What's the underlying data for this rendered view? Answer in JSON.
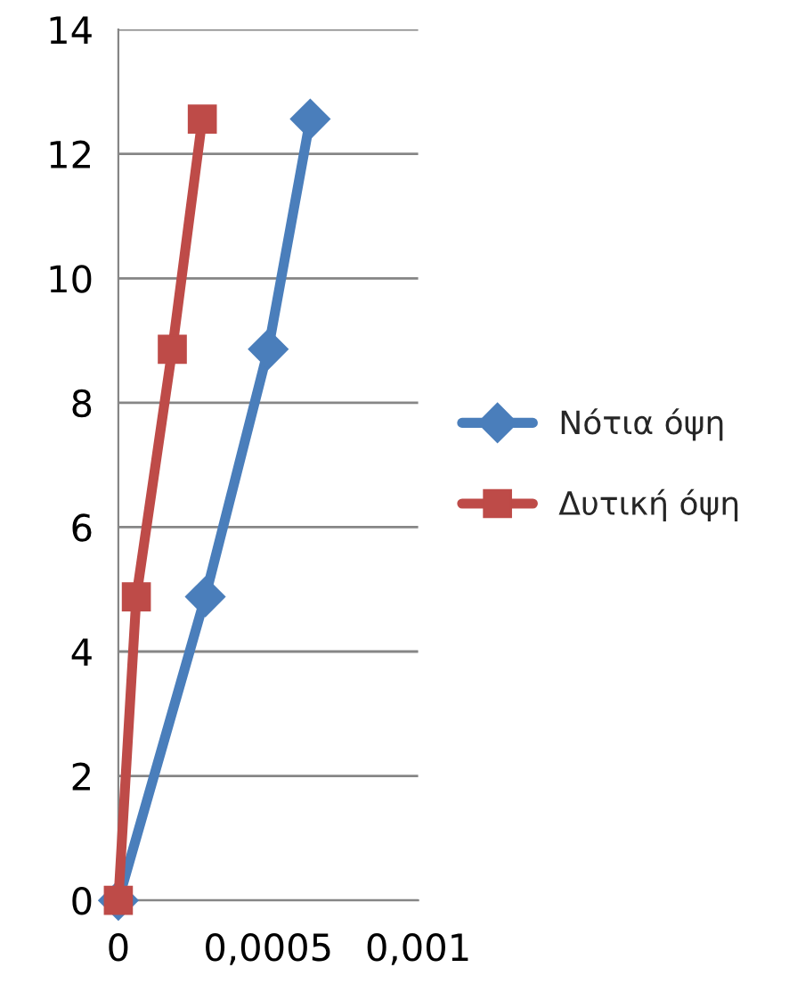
{
  "chart_data": {
    "type": "line",
    "grid": "y",
    "legend": "right",
    "xlim": [
      0,
      0.001
    ],
    "xticks": [
      0,
      {
        "value": 0.0005,
        "label": "0,0005"
      },
      {
        "value": 0.001,
        "label": "0,001"
      }
    ],
    "ylim": [
      0,
      14
    ],
    "yticks": [
      0,
      2,
      4,
      6,
      8,
      10,
      12,
      14
    ],
    "series": [
      {
        "name": "Νότια όψη",
        "color": "#4a7ebb",
        "marker": "diamond",
        "x": [
          0,
          0.00029,
          0.0005,
          0.00064
        ],
        "values": [
          0,
          4.88,
          8.86,
          12.56
        ]
      },
      {
        "name": "Δυτική όψη",
        "color": "#be4b48",
        "marker": "square",
        "x": [
          0,
          6e-05,
          0.00018,
          0.00028
        ],
        "values": [
          0,
          4.88,
          8.86,
          12.56
        ]
      }
    ]
  }
}
